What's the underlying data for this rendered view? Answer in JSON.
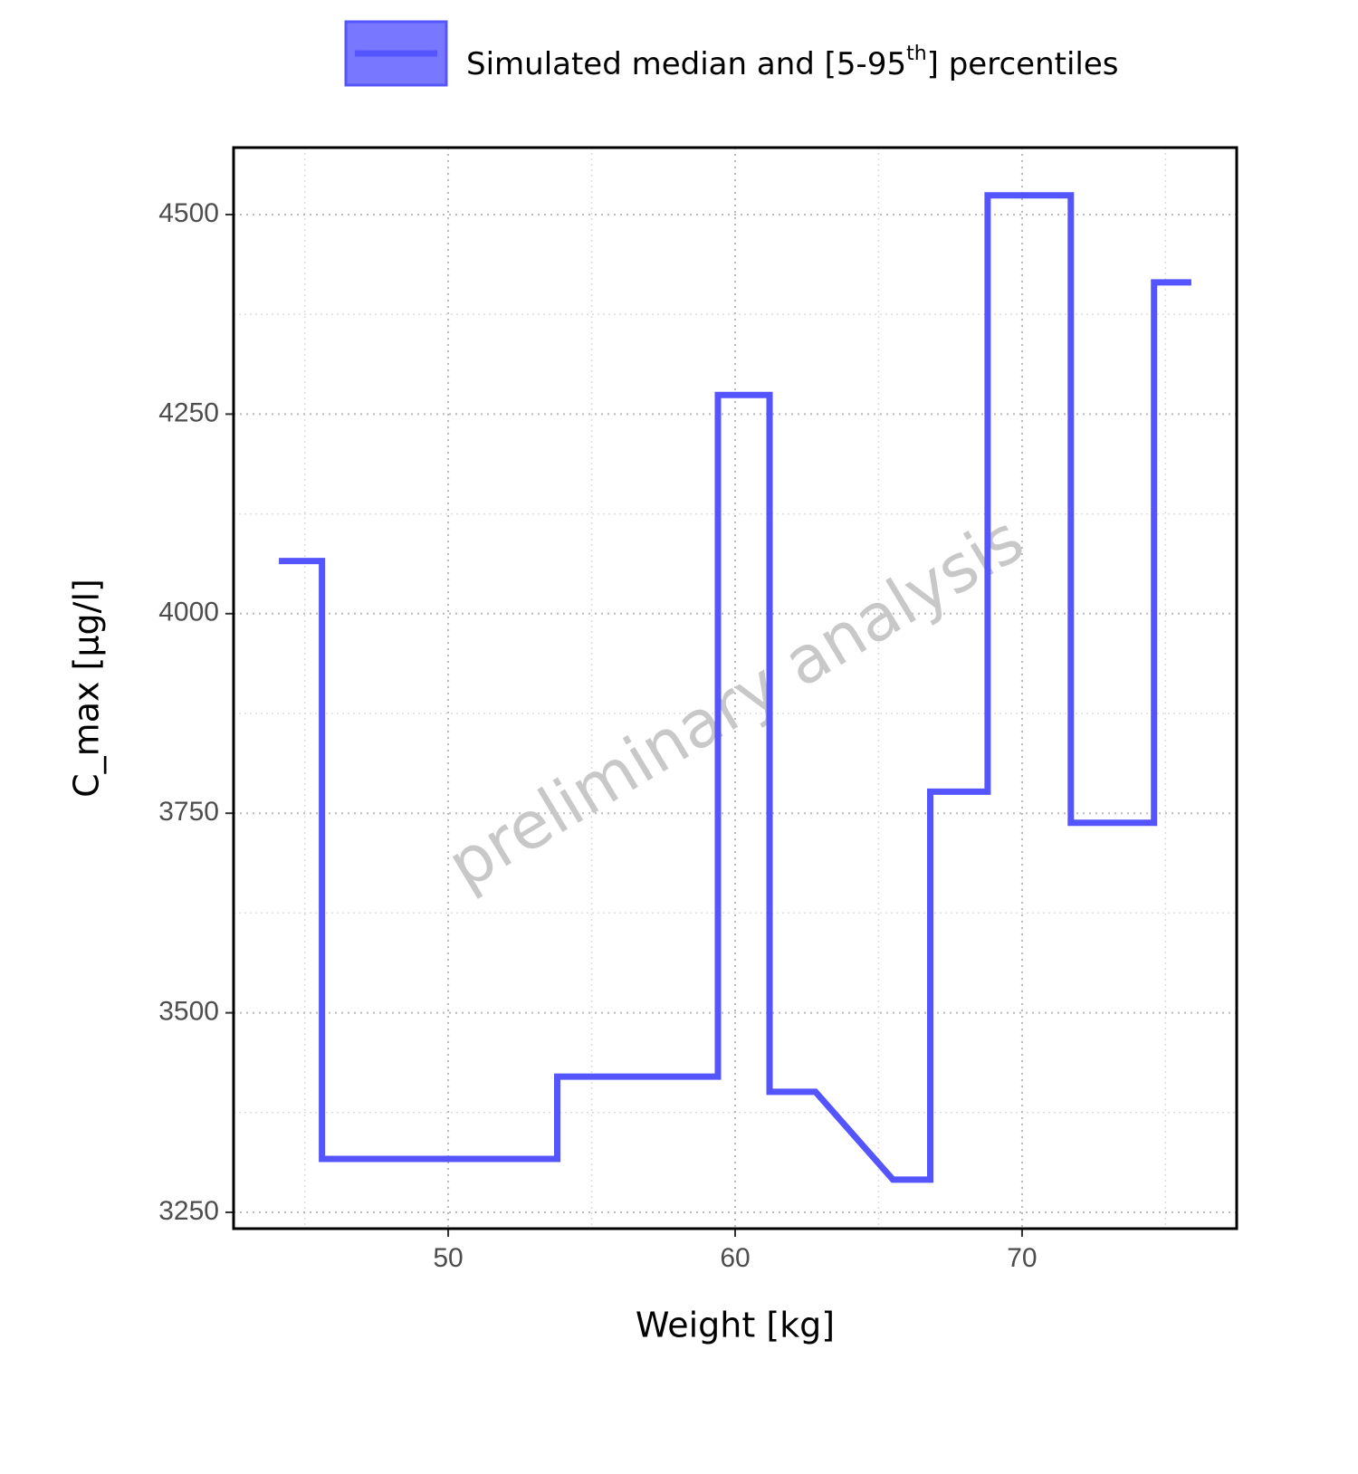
{
  "chart_data": {
    "type": "line",
    "x_label": "Weight [kg]",
    "y_label": "C_max [µg/l]",
    "watermark": "preliminary analysis",
    "x": [
      44.1,
      45.6,
      45.6,
      53.8,
      53.8,
      59.4,
      59.4,
      61.2,
      61.2,
      62.8,
      65.5,
      66.8,
      66.8,
      68.8,
      68.8,
      71.7,
      71.7,
      74.6,
      74.6,
      75.9
    ],
    "series": [
      {
        "name": "Simulated median and [5-95th] percentiles",
        "color": "#5555ff",
        "values": [
          4066,
          4066,
          3317,
          3317,
          3420,
          3420,
          4274,
          4274,
          3401,
          3401,
          3291,
          3291,
          3777,
          3777,
          4524,
          4524,
          3738,
          3738,
          4415,
          4415
        ]
      }
    ],
    "xlim": [
      42.52,
      77.48
    ],
    "ylim": [
      3229.6,
      4583.9
    ],
    "xticks": [
      50,
      60,
      70
    ],
    "yticks": [
      3250,
      3500,
      3750,
      4000,
      4250,
      4500
    ],
    "minor_xticks": [
      45,
      55,
      65,
      75
    ],
    "minor_yticks": [
      3375,
      3625,
      3875,
      4125,
      4375
    ],
    "grid": true,
    "legend": "top"
  }
}
